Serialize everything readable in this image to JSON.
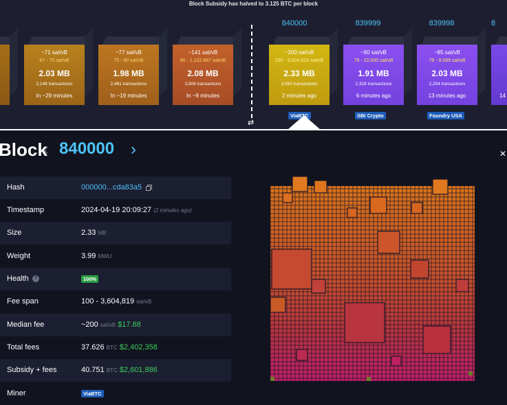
{
  "banner": "Block Subsidy has halved to 3.125 BTC per block",
  "pending_blocks": [
    {
      "fee": "~71 sat/vB",
      "range": "67 - 75 sat/vB",
      "size": "2.03 MB",
      "tx": "2,148 transactions",
      "eta": "In ~29 minutes"
    },
    {
      "fee": "~77 sat/vB",
      "range": "75 - 90 sat/vB",
      "size": "1.98 MB",
      "tx": "2,461 transactions",
      "eta": "In ~19 minutes"
    },
    {
      "fee": "~141 sat/vB",
      "range": "90 - 1,102,887 sat/vB",
      "size": "2.08 MB",
      "tx": "3,906 transactions",
      "eta": "In ~9 minutes"
    }
  ],
  "mined_blocks": [
    {
      "height": "840000",
      "fee": "~200 sat/vB",
      "range": "100 - 3,604,819 sat/vB",
      "size": "2.33 MB",
      "tx": "3,050 transactions",
      "eta": "2 minutes ago",
      "pool": "ViaBTC"
    },
    {
      "height": "839999",
      "fee": "~90 sat/vB",
      "range": "79 - 10,000 sat/vB",
      "size": "1.91 MB",
      "tx": "2,328 transactions",
      "eta": "6 minutes ago",
      "pool": "SBI Crypto"
    },
    {
      "height": "839998",
      "fee": "~85 sat/vB",
      "range": "79 - 9,069 sat/vB",
      "size": "2.03 MB",
      "tx": "2,254 transactions",
      "eta": "13 minutes ago",
      "pool": "Foundry USA"
    },
    {
      "height": "8",
      "eta": "14"
    }
  ],
  "header": {
    "title": "Block",
    "height": "840000",
    "prev": "‹",
    "next": "›",
    "close": "✕",
    "swap": "⇄"
  },
  "details": {
    "hash_label": "Hash",
    "hash_value": "000000...cda83a5",
    "timestamp_label": "Timestamp",
    "timestamp_value": "2024-04-19 20:09:27",
    "timestamp_ago": "(2 minutes ago)",
    "size_label": "Size",
    "size_value": "2.33",
    "size_unit": "MB",
    "weight_label": "Weight",
    "weight_value": "3.99",
    "weight_unit": "MWU",
    "health_label": "Health",
    "health_value": "100%",
    "feespan_label": "Fee span",
    "feespan_value": "100 - 3,604,819",
    "feespan_unit": "sat/vB",
    "median_label": "Median fee",
    "median_value": "~200",
    "median_unit": "sat/vB",
    "median_usd": "$17.88",
    "total_label": "Total fees",
    "total_value": "37.626",
    "total_unit": "BTC",
    "total_usd": "$2,402,358",
    "subsidy_label": "Subsidy + fees",
    "subsidy_value": "40.751",
    "subsidy_unit": "BTC",
    "subsidy_usd": "$2,601,886",
    "miner_label": "Miner",
    "miner_value": "ViaBTC"
  },
  "colors": {
    "accent": "#4fc3f7",
    "usd": "#3ccd5b",
    "panel": "#1c1e31"
  }
}
